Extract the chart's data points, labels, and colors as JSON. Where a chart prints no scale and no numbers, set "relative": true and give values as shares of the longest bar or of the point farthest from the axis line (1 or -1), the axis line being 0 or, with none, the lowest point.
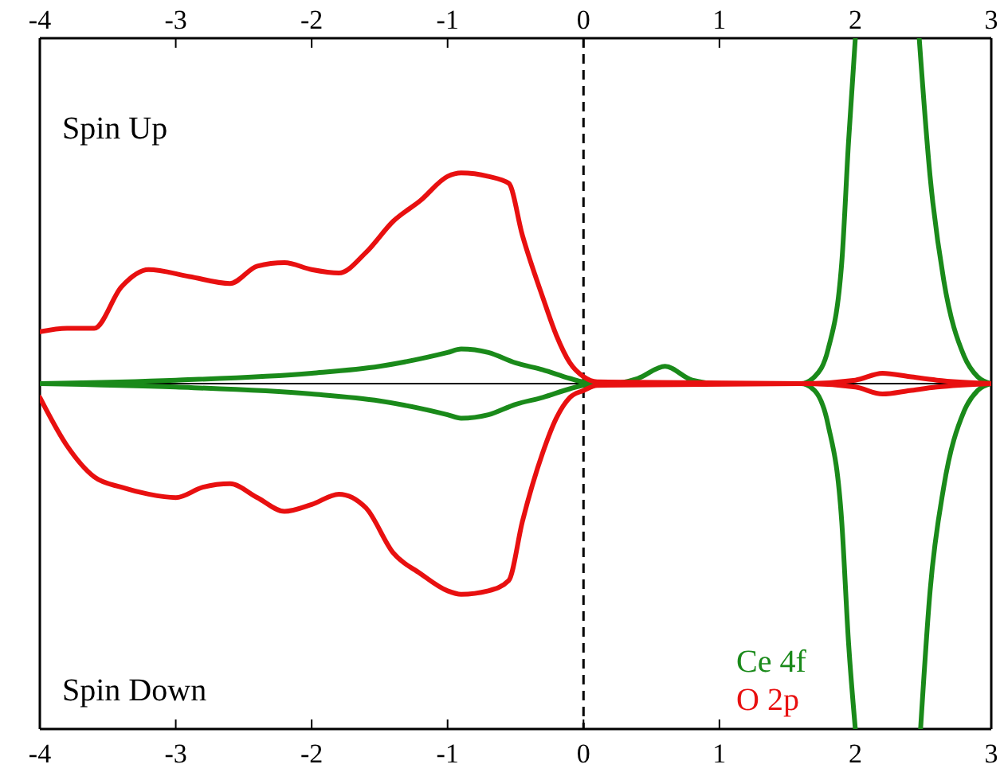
{
  "chart_data": {
    "type": "line",
    "relative": true,
    "tick_labels": "x",
    "legend": "bottom right",
    "xlim": [
      -4,
      3
    ],
    "xticks": [
      -4,
      -3,
      -2,
      -1,
      0,
      1,
      2,
      3
    ],
    "x2lim": [
      -4,
      3
    ],
    "x2ticks": [
      -4,
      -3,
      -2,
      -1,
      0,
      1,
      2,
      3
    ],
    "annotations": [
      "Spin Up",
      "Spin Down"
    ],
    "ref_lines": [
      {
        "axis": "x",
        "value": 0,
        "color": "#000000",
        "line_style": "dashed"
      }
    ],
    "series": [
      {
        "name": "Ce 4f",
        "color": "#1a8a1a",
        "x": [
          -4,
          -3,
          -2,
          -1.5,
          -1,
          -0.9,
          -0.7,
          -0.5,
          -0.3,
          -0.1,
          0,
          0.2,
          0.4,
          0.6,
          0.8,
          1,
          1.6,
          1.7,
          1.8,
          1.9,
          1.95,
          2,
          2.2,
          2.47,
          2.55,
          2.65,
          2.8,
          2.9,
          3
        ],
        "values": [
          0,
          0.01,
          0.03,
          0.05,
          0.09,
          0.1,
          0.09,
          0.06,
          0.04,
          0.015,
          0.005,
          0,
          0.015,
          0.05,
          0.01,
          0,
          0,
          0.02,
          0.1,
          0.35,
          0.7,
          1,
          null,
          1,
          0.6,
          0.3,
          0.08,
          0.02,
          0
        ]
      },
      {
        "color": "#1a8a1a",
        "x": [
          -4,
          -3,
          -2,
          -1.5,
          -1,
          -0.9,
          -0.7,
          -0.5,
          -0.3,
          -0.1,
          0,
          0.2,
          1,
          1.6,
          1.7,
          1.8,
          1.9,
          1.95,
          2,
          2.2,
          2.48,
          2.55,
          2.65,
          2.8,
          2.9,
          3
        ],
        "values": [
          0,
          -0.01,
          -0.03,
          -0.05,
          -0.09,
          -0.1,
          -0.09,
          -0.06,
          -0.04,
          -0.015,
          -0.005,
          0,
          0,
          0,
          -0.02,
          -0.12,
          -0.4,
          -0.75,
          -1,
          null,
          -1,
          -0.6,
          -0.3,
          -0.08,
          -0.02,
          0
        ]
      },
      {
        "name": "O 2p",
        "color": "#e81010",
        "x": [
          -4,
          -3.8,
          -3.6,
          -3.4,
          -3.2,
          -2.9,
          -2.6,
          -2.4,
          -2.2,
          -2,
          -1.8,
          -1.6,
          -1.4,
          -1.2,
          -1,
          -0.9,
          -0.7,
          -0.55,
          -0.45,
          -0.3,
          -0.2,
          -0.1,
          0,
          0.1,
          1.6,
          2,
          2.2,
          2.4,
          2.6,
          3
        ],
        "values": [
          0.15,
          0.16,
          0.16,
          0.28,
          0.33,
          0.31,
          0.29,
          0.34,
          0.35,
          0.33,
          0.32,
          0.38,
          0.47,
          0.53,
          0.6,
          0.61,
          0.6,
          0.58,
          0.43,
          0.25,
          0.14,
          0.06,
          0.02,
          0.005,
          0,
          0.01,
          0.03,
          0.02,
          0.01,
          0
        ]
      },
      {
        "color": "#e81010",
        "x": [
          -4,
          -3.8,
          -3.6,
          -3.4,
          -3.2,
          -3,
          -2.8,
          -2.6,
          -2.4,
          -2.2,
          -2,
          -1.8,
          -1.6,
          -1.4,
          -1.2,
          -1,
          -0.9,
          -0.7,
          -0.55,
          -0.45,
          -0.3,
          -0.2,
          -0.1,
          0,
          0.1,
          1.6,
          2,
          2.2,
          2.4,
          2.6,
          3
        ],
        "values": [
          -0.04,
          -0.18,
          -0.27,
          -0.3,
          -0.32,
          -0.33,
          -0.3,
          -0.29,
          -0.33,
          -0.37,
          -0.35,
          -0.32,
          -0.36,
          -0.49,
          -0.55,
          -0.6,
          -0.61,
          -0.6,
          -0.57,
          -0.4,
          -0.2,
          -0.1,
          -0.04,
          -0.02,
          -0.005,
          0,
          -0.01,
          -0.03,
          -0.02,
          -0.01,
          0
        ]
      }
    ]
  }
}
